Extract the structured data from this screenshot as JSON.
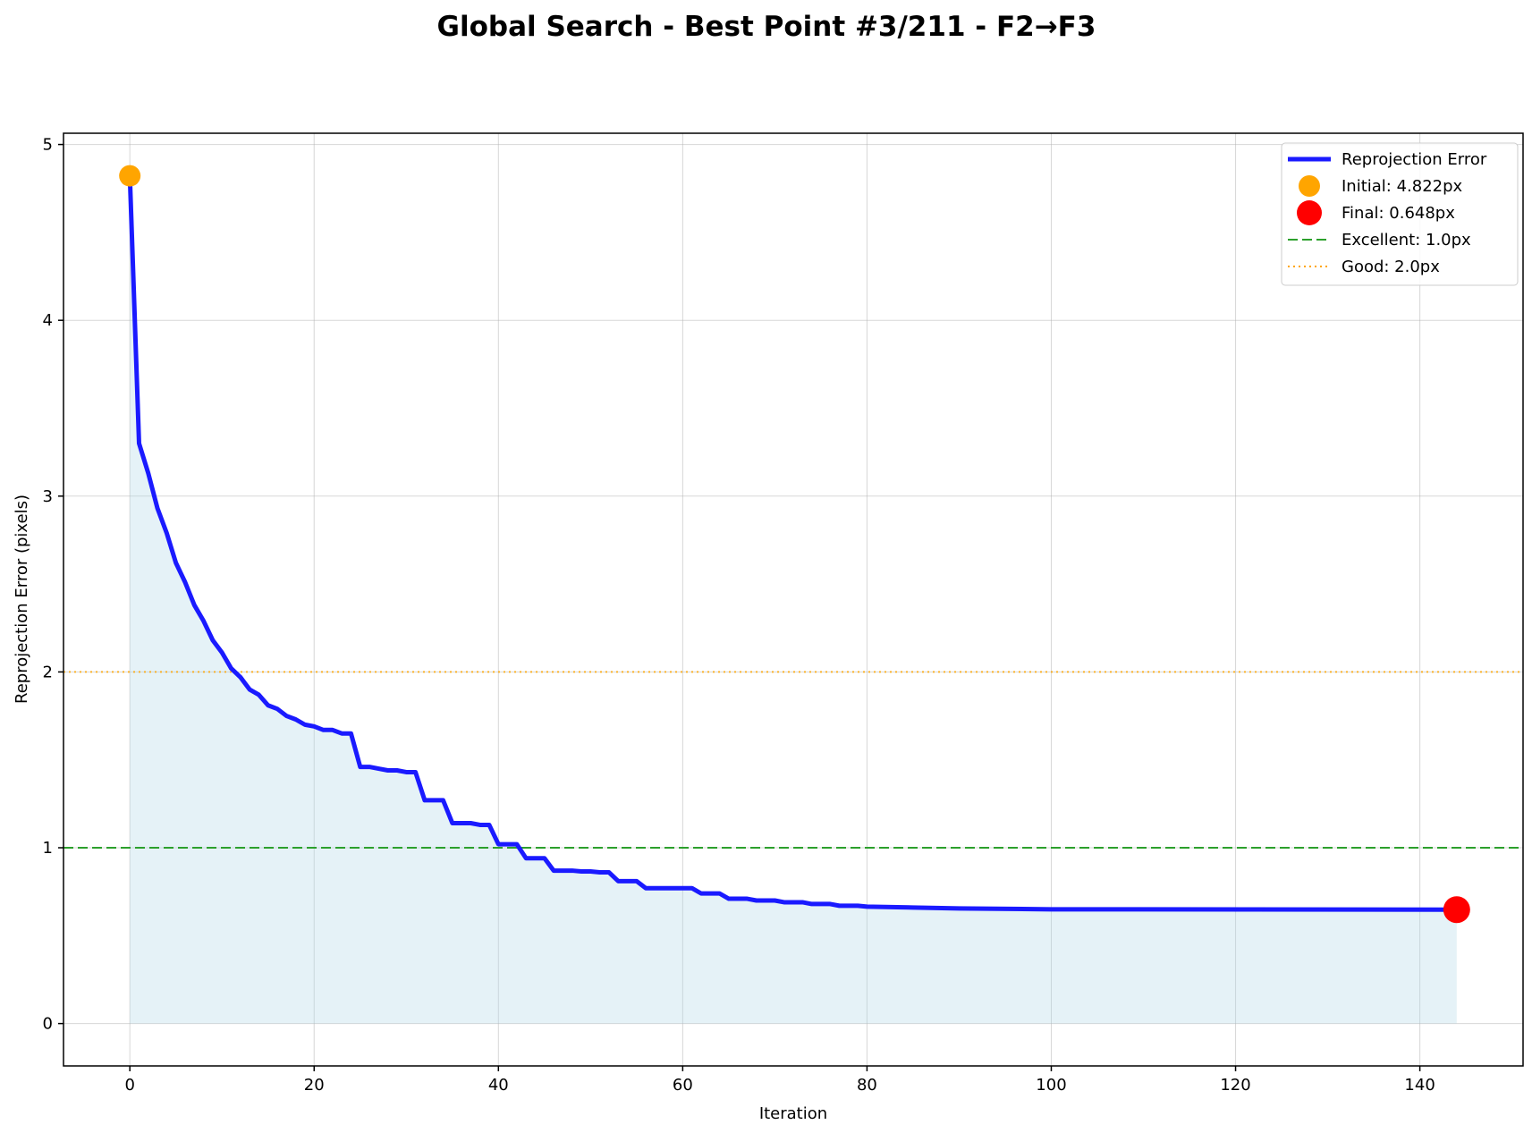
{
  "chart_data": {
    "type": "line",
    "title": "Global Search - Best Point #3/211 - F2→F3",
    "xlabel": "Iteration",
    "ylabel": "Reprojection Error (pixels)",
    "xlim": [
      -7.2,
      151.2
    ],
    "ylim": [
      -0.241,
      5.064
    ],
    "xticks": [
      0,
      20,
      40,
      60,
      80,
      100,
      120,
      140
    ],
    "yticks": [
      0,
      1,
      2,
      3,
      4,
      5
    ],
    "grid": true,
    "legend_position": "top-right",
    "colors": {
      "line": "#1a1aff",
      "fill": "#add8e6",
      "initial": "#ffa500",
      "final": "#ff0000",
      "excellent": "#2ca02c",
      "good": "#ffa500"
    },
    "series": [
      {
        "name": "Reprojection Error",
        "x": [
          0,
          1,
          2,
          3,
          4,
          5,
          6,
          7,
          8,
          9,
          10,
          11,
          12,
          13,
          14,
          15,
          16,
          17,
          18,
          19,
          20,
          21,
          22,
          23,
          24,
          25,
          26,
          27,
          28,
          29,
          30,
          31,
          32,
          33,
          34,
          35,
          36,
          37,
          38,
          39,
          40,
          41,
          42,
          43,
          44,
          45,
          46,
          47,
          48,
          49,
          50,
          51,
          52,
          53,
          54,
          55,
          56,
          57,
          58,
          59,
          60,
          61,
          62,
          63,
          64,
          65,
          66,
          67,
          68,
          69,
          70,
          71,
          72,
          73,
          74,
          75,
          76,
          77,
          78,
          79,
          80,
          85,
          90,
          100,
          144
        ],
        "y": [
          4.822,
          3.3,
          3.13,
          2.93,
          2.79,
          2.62,
          2.51,
          2.38,
          2.29,
          2.18,
          2.11,
          2.02,
          1.97,
          1.9,
          1.87,
          1.81,
          1.79,
          1.75,
          1.73,
          1.7,
          1.69,
          1.67,
          1.67,
          1.65,
          1.65,
          1.46,
          1.46,
          1.45,
          1.44,
          1.44,
          1.43,
          1.43,
          1.27,
          1.27,
          1.27,
          1.14,
          1.14,
          1.14,
          1.13,
          1.13,
          1.02,
          1.02,
          1.02,
          0.94,
          0.94,
          0.94,
          0.87,
          0.87,
          0.87,
          0.865,
          0.865,
          0.86,
          0.86,
          0.81,
          0.81,
          0.81,
          0.77,
          0.77,
          0.77,
          0.77,
          0.77,
          0.77,
          0.74,
          0.74,
          0.74,
          0.71,
          0.71,
          0.71,
          0.7,
          0.7,
          0.7,
          0.69,
          0.69,
          0.69,
          0.68,
          0.68,
          0.68,
          0.67,
          0.67,
          0.67,
          0.665,
          0.66,
          0.655,
          0.65,
          0.648
        ]
      }
    ],
    "markers": [
      {
        "name": "Initial: 4.822px",
        "x": 0,
        "y": 4.822
      },
      {
        "name": "Final: 0.648px",
        "x": 144,
        "y": 0.648
      }
    ],
    "hlines": [
      {
        "name": "Excellent: 1.0px",
        "y": 1.0,
        "style": "dashed"
      },
      {
        "name": "Good: 2.0px",
        "y": 2.0,
        "style": "dotted"
      }
    ]
  }
}
